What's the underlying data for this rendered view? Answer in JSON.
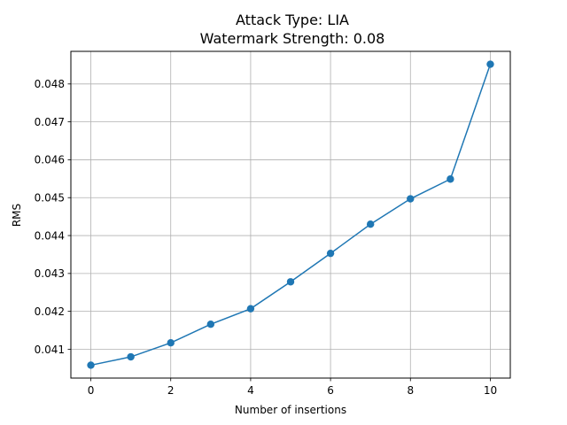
{
  "chart_data": {
    "type": "line",
    "title": "Attack Type: LIA",
    "subtitle": "Watermark Strength: 0.08",
    "xlabel": "Number of insertions",
    "ylabel": "RMS",
    "x": [
      0,
      1,
      2,
      3,
      4,
      5,
      6,
      7,
      8,
      9,
      10
    ],
    "series": [
      {
        "values": [
          0.04058,
          0.0408,
          0.04117,
          0.04166,
          0.04207,
          0.04278,
          0.04353,
          0.0443,
          0.04497,
          0.04549,
          0.04852
        ]
      }
    ],
    "xlim": [
      -0.5,
      10.5
    ],
    "ylim": [
      0.04024,
      0.04886
    ],
    "xticks": [
      0,
      2,
      4,
      6,
      8,
      10
    ],
    "xtick_labels": [
      "0",
      "2",
      "4",
      "6",
      "8",
      "10"
    ],
    "yticks": [
      0.041,
      0.042,
      0.043,
      0.044,
      0.045,
      0.046,
      0.047,
      0.048
    ],
    "ytick_labels": [
      "0.041",
      "0.042",
      "0.043",
      "0.044",
      "0.045",
      "0.046",
      "0.047",
      "0.048"
    ],
    "grid": true,
    "line_color": "#1f77b4",
    "marker": "circle"
  }
}
